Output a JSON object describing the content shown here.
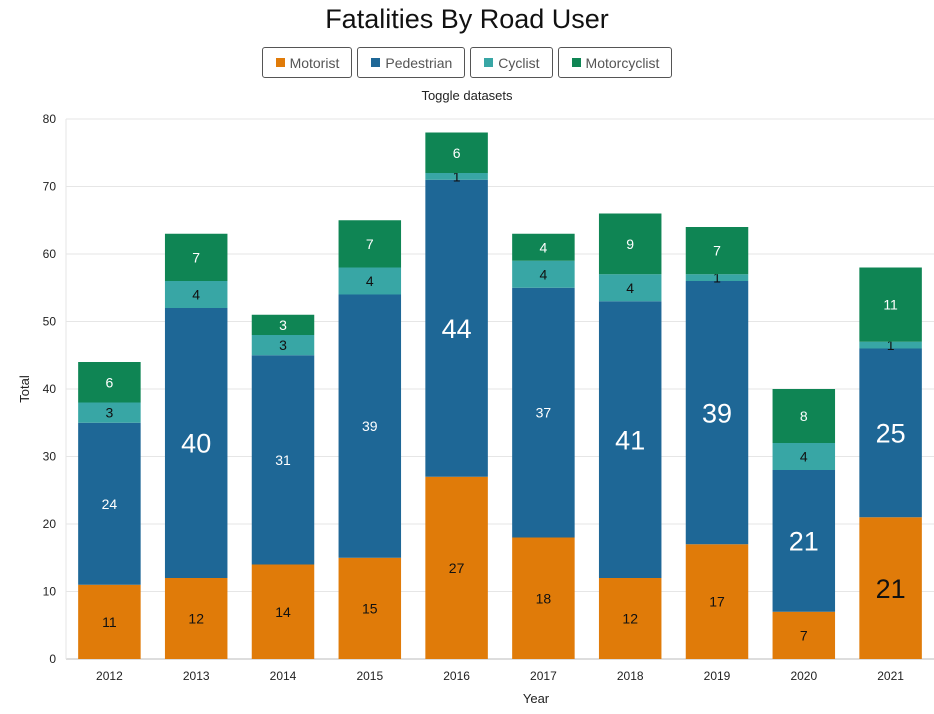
{
  "title": "Fatalities By Road User",
  "toggle_label": "Toggle datasets",
  "chart_data": {
    "type": "bar",
    "stacked": true,
    "title": "Fatalities By Road User",
    "xlabel": "Year",
    "ylabel": "Total",
    "ylim": [
      0,
      80
    ],
    "yticks": [
      0,
      10,
      20,
      30,
      40,
      50,
      60,
      70,
      80
    ],
    "grid": true,
    "legend_position": "top",
    "categories": [
      "2012",
      "2013",
      "2014",
      "2015",
      "2016",
      "2017",
      "2018",
      "2019",
      "2020",
      "2021"
    ],
    "series": [
      {
        "name": "Motorist",
        "color": "#e07b09",
        "label_color": "#111111",
        "values": [
          11,
          12,
          14,
          15,
          27,
          18,
          12,
          17,
          7,
          21
        ],
        "label_sizes": [
          "md",
          "md",
          "md",
          "md",
          "md",
          "md",
          "md",
          "md",
          "md",
          "xl"
        ]
      },
      {
        "name": "Pedestrian",
        "color": "#1e6796",
        "label_color": "#ffffff",
        "values": [
          24,
          40,
          31,
          39,
          44,
          37,
          41,
          39,
          21,
          25
        ],
        "label_sizes": [
          "md",
          "xl",
          "md",
          "md",
          "xl",
          "md",
          "xl",
          "xl",
          "xl",
          "xl"
        ]
      },
      {
        "name": "Cyclist",
        "color": "#38a6a5",
        "label_color": "#111111",
        "values": [
          3,
          4,
          3,
          4,
          1,
          4,
          4,
          1,
          4,
          1
        ],
        "label_sizes": [
          "md",
          "md",
          "md",
          "md",
          "md",
          "md",
          "md",
          "md",
          "md",
          "md"
        ]
      },
      {
        "name": "Motorcyclist",
        "color": "#0f8554",
        "label_color": "#ffffff",
        "values": [
          6,
          7,
          3,
          7,
          6,
          4,
          9,
          7,
          8,
          11
        ],
        "label_sizes": [
          "md",
          "md",
          "md",
          "md",
          "md",
          "md",
          "md",
          "md",
          "md",
          "md"
        ]
      }
    ]
  }
}
